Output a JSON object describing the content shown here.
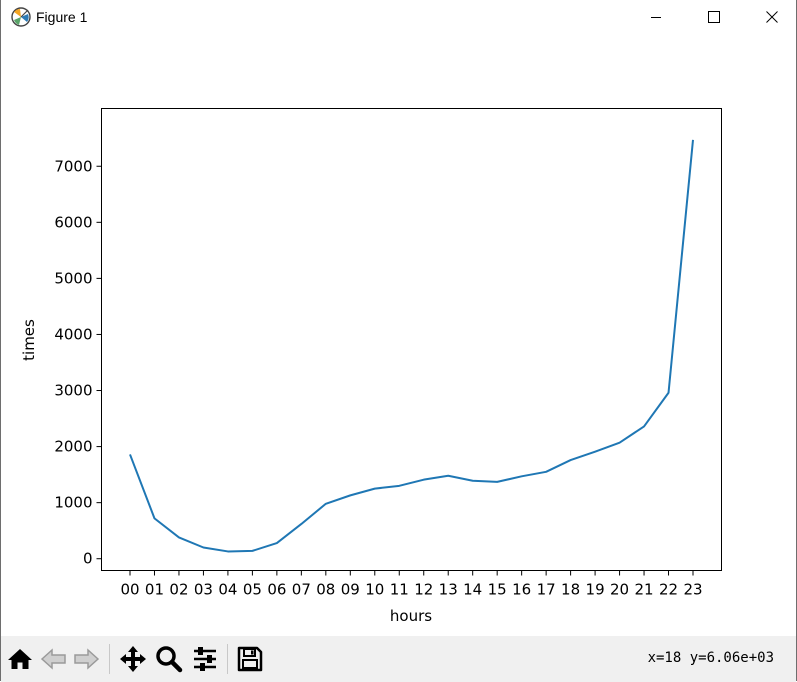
{
  "window": {
    "title": "Figure 1",
    "controls": [
      "minimize",
      "maximize",
      "close"
    ]
  },
  "toolbar": {
    "buttons": [
      {
        "name": "home",
        "icon": "home-icon"
      },
      {
        "name": "back",
        "icon": "back-arrow-icon"
      },
      {
        "name": "forward",
        "icon": "forward-arrow-icon"
      },
      {
        "name": "pan",
        "icon": "move-icon"
      },
      {
        "name": "zoom",
        "icon": "zoom-icon"
      },
      {
        "name": "configure-subplots",
        "icon": "sliders-icon"
      },
      {
        "name": "save",
        "icon": "save-icon"
      }
    ],
    "coords": "x=18  y=6.06e+03"
  },
  "chart_data": {
    "type": "line",
    "xlabel": "hours",
    "ylabel": "times",
    "categories": [
      "00",
      "01",
      "02",
      "03",
      "04",
      "05",
      "06",
      "07",
      "08",
      "09",
      "10",
      "11",
      "12",
      "13",
      "14",
      "15",
      "16",
      "17",
      "18",
      "19",
      "20",
      "21",
      "22",
      "23"
    ],
    "values": [
      1860,
      720,
      380,
      200,
      130,
      140,
      280,
      620,
      980,
      1130,
      1250,
      1300,
      1410,
      1480,
      1390,
      1370,
      1470,
      1550,
      1760,
      1910,
      2070,
      2360,
      2960,
      7470
    ],
    "yticks": [
      0,
      1000,
      2000,
      3000,
      4000,
      5000,
      6000,
      7000
    ],
    "ylim": [
      -210,
      8030
    ],
    "line_color": "#1f77b4",
    "grid": false
  }
}
